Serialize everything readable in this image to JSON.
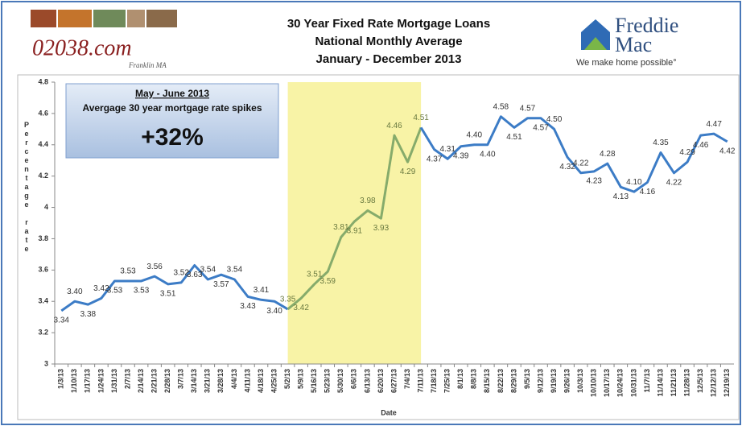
{
  "header": {
    "site": "02038.com",
    "site_signature": "Franklin MA",
    "brand_top": "Freddie",
    "brand_bottom": "Mac",
    "brand_tagline": "We make home possible°"
  },
  "chart_data": {
    "type": "line",
    "title": "30 Year Fixed Rate Mortgage Loans",
    "subtitle": "National Monthly Average",
    "period": "January - December 2013",
    "x_label": "Date",
    "y_label": "Percentage rate",
    "annotation": {
      "heading": "May - June 2013",
      "text": "Avergage 30 year mortgage rate spikes",
      "value": 32,
      "value_label": "+32%"
    },
    "highlight": {
      "start": "5/2/13",
      "end": "7/11/13",
      "color": "#f8f3a6",
      "line_color": "#86ab6b"
    },
    "categories": [
      "1/3/13",
      "1/10/13",
      "1/17/13",
      "1/24/13",
      "1/31/13",
      "2/7/13",
      "2/14/13",
      "2/21/13",
      "2/28/13",
      "3/7/13",
      "3/14/13",
      "3/21/13",
      "3/28/13",
      "4/4/13",
      "4/11/13",
      "4/18/13",
      "4/25/13",
      "5/2/13",
      "5/9/13",
      "5/16/13",
      "5/23/13",
      "5/30/13",
      "6/6/13",
      "6/13/13",
      "6/20/13",
      "6/27/13",
      "7/4/13",
      "7/11/13",
      "7/18/13",
      "7/25/13",
      "8/1/13",
      "8/8/13",
      "8/15/13",
      "8/22/13",
      "8/29/13",
      "9/5/13",
      "9/12/13",
      "9/19/13",
      "9/26/13",
      "10/3/13",
      "10/10/13",
      "10/17/13",
      "10/24/13",
      "10/31/13",
      "11/7/13",
      "11/14/13",
      "11/21/13",
      "11/28/13",
      "12/5/13",
      "12/12/13",
      "12/19/13"
    ],
    "values": [
      3.34,
      3.4,
      3.38,
      3.42,
      3.53,
      3.53,
      3.53,
      3.56,
      3.51,
      3.52,
      3.63,
      3.54,
      3.57,
      3.54,
      3.43,
      3.41,
      3.4,
      3.35,
      3.42,
      3.51,
      3.59,
      3.81,
      3.91,
      3.98,
      3.93,
      4.46,
      4.29,
      4.51,
      4.37,
      4.31,
      4.39,
      4.4,
      4.4,
      4.58,
      4.51,
      4.57,
      4.57,
      4.5,
      4.32,
      4.22,
      4.23,
      4.28,
      4.13,
      4.1,
      4.16,
      4.35,
      4.22,
      4.29,
      4.46,
      4.47,
      4.42
    ],
    "value_labels": [
      "3.34",
      "3.40",
      "3.38",
      "3.42",
      "3.53",
      "3.53",
      "3.53",
      "3.56",
      "3.51",
      "3.52",
      "3.63",
      "3.54",
      "3.57",
      "3.54",
      "3.43",
      "3.41",
      "3.40",
      "3.35",
      "3.42",
      "3.51",
      "3.59",
      "3.81",
      "3.91",
      "3.98",
      "3.93",
      "4.46",
      "4.29",
      "4.51",
      "4.37",
      "4.31",
      "4.39",
      "4.40",
      "4.40",
      "4.58",
      "4.51",
      "4.57",
      "4.57",
      "4.50",
      "4.32",
      "4.22",
      "4.23",
      "4.28",
      "4.13",
      "4.10",
      "4.16",
      "4.35",
      "4.22",
      "4.29",
      "4.46",
      "4.47",
      "4.42"
    ],
    "color": "#3c7cc6",
    "ylim": [
      3,
      4.8
    ],
    "yticks": [
      3,
      3.2,
      3.4,
      3.6,
      3.8,
      4,
      4.2,
      4.4,
      4.6,
      4.8
    ],
    "grid": false
  }
}
